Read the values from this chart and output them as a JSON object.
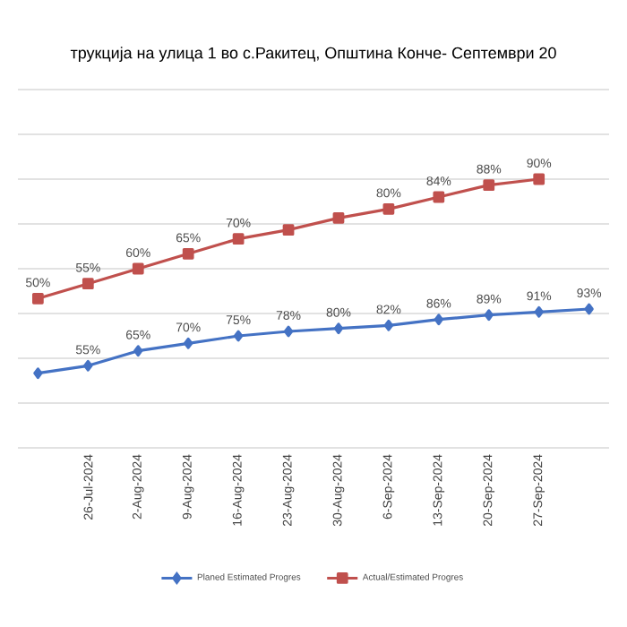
{
  "chart_data": {
    "type": "line",
    "title": "трукција на улица 1 во с.Ракитец, Општина Конче-  Септември 20",
    "categories": [
      null,
      "26-Jul-2024",
      "2-Aug-2024",
      "9-Aug-2024",
      "16-Aug-2024",
      "23-Aug-2024",
      "30-Aug-2024",
      "6-Sep-2024",
      "13-Sep-2024",
      "20-Sep-2024",
      "27-Sep-2024",
      null
    ],
    "series": [
      {
        "name": "Planed Estimated Progres",
        "color": "#4472c4",
        "marker": "diamond",
        "axis": "y2",
        "values": [
          50,
          55,
          65,
          70,
          75,
          78,
          80,
          82,
          86,
          89,
          91,
          93
        ],
        "value_labels": [
          null,
          "55%",
          "65%",
          "70%",
          "75%",
          "78%",
          "80%",
          "82%",
          "86%",
          "89%",
          "91%",
          "93%"
        ]
      },
      {
        "name": "Actual/Estimated Progres",
        "color": "#c0504d",
        "marker": "square",
        "values": [
          50,
          55,
          60,
          65,
          70,
          73,
          77,
          80,
          84,
          88,
          90,
          null
        ],
        "value_labels": [
          "50%",
          "55%",
          "60%",
          "65%",
          "70%",
          null,
          null,
          "80%",
          "84%",
          "88%",
          "90%",
          null
        ]
      }
    ],
    "ylim": [
      0,
      120
    ],
    "yticks": [
      {
        "value": 0,
        "label": null
      },
      {
        "value": 15,
        "label": null
      },
      {
        "value": 30,
        "label": null
      },
      {
        "value": 45,
        "label": null
      },
      {
        "value": 60,
        "label": null
      },
      {
        "value": 75,
        "label": null
      },
      {
        "value": 90,
        "label": null
      },
      {
        "value": 105,
        "label": null
      },
      {
        "value": 120,
        "label": null
      }
    ],
    "y2lim": [
      0,
      240
    ],
    "grid": "y",
    "legend": "bottom",
    "tick_labels": "x",
    "line_style": "solid"
  }
}
